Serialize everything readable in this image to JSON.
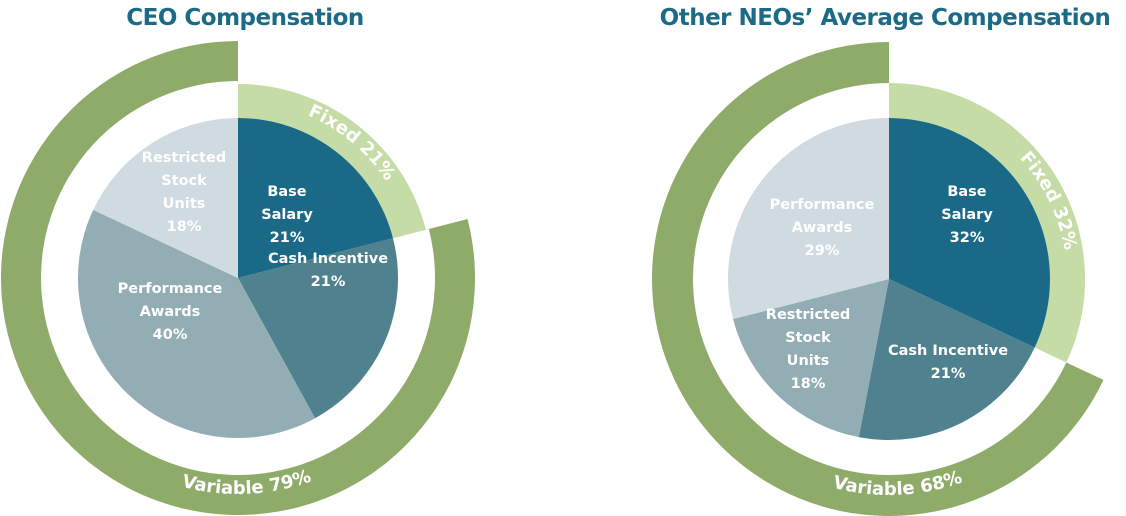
{
  "colors": {
    "base": "#1a6a87",
    "cash": "#4f818e",
    "mid": "#93adb4",
    "light": "#cfdbe0",
    "variable": "#8fab6a",
    "fixed": "#c5dca6",
    "title": "#1b6a86"
  },
  "chart_data": [
    {
      "type": "pie",
      "title": "CEO Compensation",
      "slices": [
        {
          "label": [
            "Base",
            "Salary",
            "21%"
          ],
          "value": 21
        },
        {
          "label": [
            "Cash Incentive",
            "21%"
          ],
          "value": 21
        },
        {
          "label": [
            "Performance",
            "Awards",
            "40%"
          ],
          "value": 40
        },
        {
          "label": [
            "Restricted",
            "Stock",
            "Units",
            "18%"
          ],
          "value": 18
        }
      ],
      "rings": [
        {
          "label": "Fixed 21%",
          "value": 21
        },
        {
          "label": "Variable 79%",
          "value": 79
        }
      ]
    },
    {
      "type": "pie",
      "title": "Other NEOs’ Average Compensation",
      "slices": [
        {
          "label": [
            "Base",
            "Salary",
            "32%"
          ],
          "value": 32
        },
        {
          "label": [
            "Cash Incentive",
            "21%"
          ],
          "value": 21
        },
        {
          "label": [
            "Restricted",
            "Stock",
            "Units",
            "18%"
          ],
          "value": 18
        },
        {
          "label": [
            "Performance",
            "Awards",
            "29%"
          ],
          "value": 29
        }
      ],
      "rings": [
        {
          "label": "Fixed 32%",
          "value": 32
        },
        {
          "label": "Variable 68%",
          "value": 68
        }
      ]
    }
  ]
}
